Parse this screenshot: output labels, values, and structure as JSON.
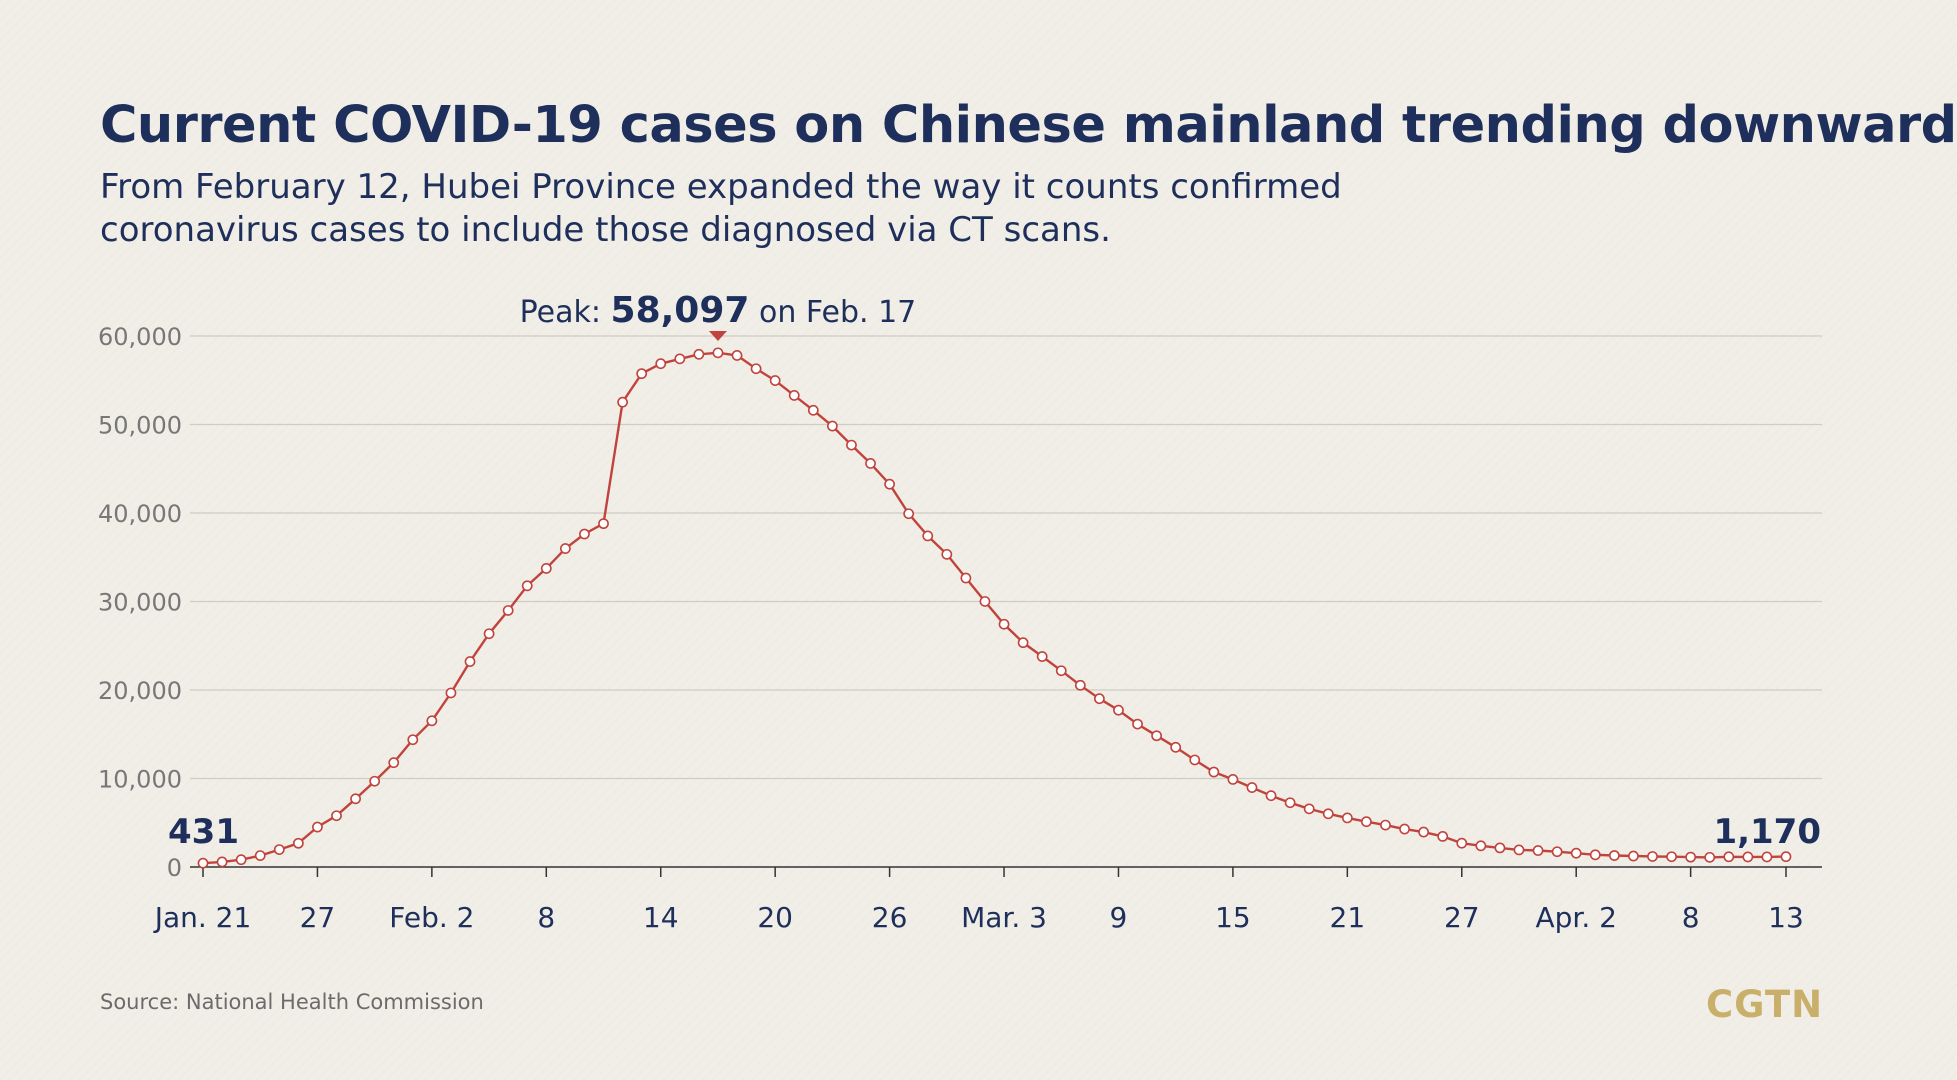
{
  "title": "Current COVID-19 cases on Chinese mainland trending downward",
  "subtitle": "From February 12, Hubei Province expanded the way it counts confirmed coronavirus cases to include those diagnosed via CT scans.",
  "source": "Source: National Health Commission",
  "logo": "CGTN",
  "colors": {
    "title": "#1d2f5a",
    "line": "#c0443d",
    "marker_fill": "#ffffff",
    "grid": "#cfccc4",
    "axis_text": "#777777",
    "tick_text": "#1d2f5a",
    "logo": "#c9b06a"
  },
  "chart_data": {
    "type": "line",
    "title": "",
    "xlabel": "",
    "ylabel": "",
    "ylim": [
      0,
      60000
    ],
    "yticks": [
      0,
      10000,
      20000,
      30000,
      40000,
      50000,
      60000
    ],
    "ytick_labels": [
      "0",
      "10,000",
      "20,000",
      "30,000",
      "40,000",
      "50,000",
      "60,000"
    ],
    "x_dates": {
      "first": "Jan. 21",
      "last": "Apr. 13",
      "values": [
        "Jan. 21",
        "Jan. 22",
        "Jan. 23",
        "Jan. 24",
        "Jan. 25",
        "Jan. 26",
        "Jan. 27",
        "Jan. 28",
        "Jan. 29",
        "Jan. 30",
        "Jan. 31",
        "Feb. 1",
        "Feb. 2",
        "Feb. 3",
        "Feb. 4",
        "Feb. 5",
        "Feb. 6",
        "Feb. 7",
        "Feb. 8",
        "Feb. 9",
        "Feb. 10",
        "Feb. 11",
        "Feb. 12",
        "Feb. 13",
        "Feb. 14",
        "Feb. 15",
        "Feb. 16",
        "Feb. 17",
        "Feb. 18",
        "Feb. 19",
        "Feb. 20",
        "Feb. 21",
        "Feb. 22",
        "Feb. 23",
        "Feb. 24",
        "Feb. 25",
        "Feb. 26",
        "Feb. 27",
        "Feb. 28",
        "Feb. 29",
        "Mar. 1",
        "Mar. 2",
        "Mar. 3",
        "Mar. 4",
        "Mar. 5",
        "Mar. 6",
        "Mar. 7",
        "Mar. 8",
        "Mar. 9",
        "Mar. 10",
        "Mar. 11",
        "Mar. 12",
        "Mar. 13",
        "Mar. 14",
        "Mar. 15",
        "Mar. 16",
        "Mar. 17",
        "Mar. 18",
        "Mar. 19",
        "Mar. 20",
        "Mar. 21",
        "Mar. 22",
        "Mar. 23",
        "Mar. 24",
        "Mar. 25",
        "Mar. 26",
        "Mar. 27",
        "Mar. 28",
        "Mar. 29",
        "Mar. 30",
        "Mar. 31",
        "Apr. 1",
        "Apr. 2",
        "Apr. 3",
        "Apr. 4",
        "Apr. 5",
        "Apr. 6",
        "Apr. 7",
        "Apr. 8",
        "Apr. 9",
        "Apr. 10",
        "Apr. 11",
        "Apr. 12",
        "Apr. 13"
      ]
    },
    "xticks": [
      {
        "label": "Jan. 21",
        "index": 0
      },
      {
        "label": "27",
        "index": 6
      },
      {
        "label": "Feb. 2",
        "index": 12
      },
      {
        "label": "8",
        "index": 18
      },
      {
        "label": "14",
        "index": 24
      },
      {
        "label": "20",
        "index": 30
      },
      {
        "label": "26",
        "index": 36
      },
      {
        "label": "Mar. 3",
        "index": 42
      },
      {
        "label": "9",
        "index": 48
      },
      {
        "label": "15",
        "index": 54
      },
      {
        "label": "21",
        "index": 60
      },
      {
        "label": "27",
        "index": 66
      },
      {
        "label": "Apr. 2",
        "index": 72
      },
      {
        "label": "8",
        "index": 78
      },
      {
        "label": "13",
        "index": 83
      }
    ],
    "series": [
      {
        "values": [
          431,
          571,
          830,
          1287,
          1965,
          2684,
          4515,
          5794,
          7711,
          9692,
          11791,
          14380,
          16523,
          19665,
          23214,
          26359,
          28985,
          31774,
          33738,
          35982,
          37626,
          38800,
          52526,
          55748,
          56873,
          57416,
          57934,
          58097,
          57805,
          56303,
          54965,
          53284,
          51606,
          49824,
          47672,
          45604,
          43258,
          39919,
          37414,
          35329,
          32652,
          30004,
          27433,
          25352,
          23784,
          22177,
          20533,
          19016,
          17721,
          16145,
          14831,
          13526,
          12094,
          10734,
          9898,
          8976,
          8056,
          7263,
          6569,
          6013,
          5549,
          5120,
          4735,
          4287,
          3947,
          3460,
          2691,
          2396,
          2161,
          1934,
          1863,
          1727,
          1562,
          1376,
          1299,
          1242,
          1190,
          1160,
          1116,
          1089,
          1156,
          1138,
          1137,
          1170
        ]
      }
    ],
    "grid": true,
    "annotations": {
      "peak": {
        "prefix": "Peak:",
        "value": "58,097",
        "suffix": "on Feb. 17",
        "index": 27
      },
      "start_label": "431",
      "end_label": "1,170"
    }
  }
}
